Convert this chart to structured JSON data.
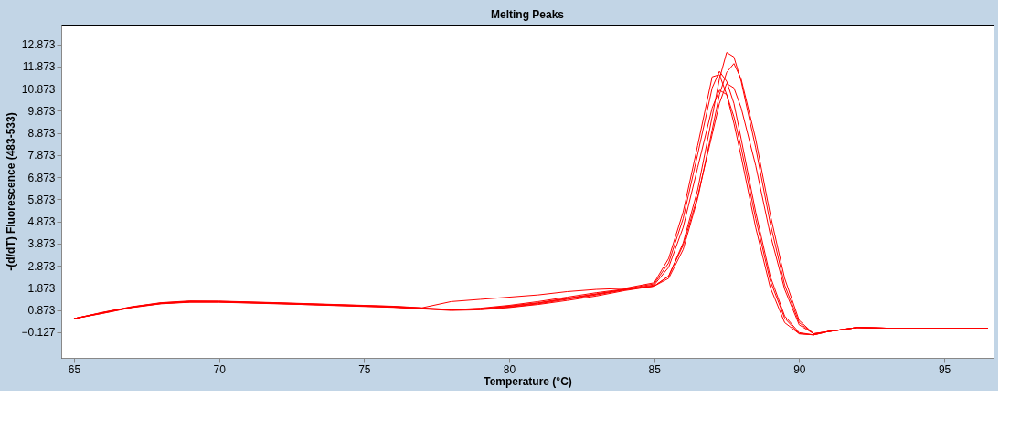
{
  "chart_data": {
    "type": "line",
    "title": "Melting Peaks",
    "xlabel": "Temperature (°C)",
    "ylabel": "-(d/dT) Fluorescence (483-533)",
    "x": [
      65,
      66,
      67,
      68,
      69,
      70,
      72,
      74,
      76,
      77,
      78,
      79,
      80,
      81,
      82,
      83,
      84,
      85,
      85.5,
      86,
      86.5,
      87,
      87.25,
      87.5,
      87.75,
      88,
      88.5,
      89,
      89.5,
      90,
      90.5,
      91,
      92,
      93,
      94,
      95,
      96.5
    ],
    "series": [
      {
        "color": "#ff0000",
        "values": [
          0.48,
          0.75,
          1.0,
          1.18,
          1.25,
          1.25,
          1.18,
          1.1,
          1.02,
          0.95,
          0.9,
          0.92,
          1.05,
          1.2,
          1.4,
          1.6,
          1.8,
          1.95,
          2.4,
          3.9,
          6.3,
          9.6,
          11.3,
          12.5,
          12.3,
          11.2,
          8.2,
          4.8,
          2.0,
          0.3,
          -0.2,
          -0.1,
          0.08,
          0.05,
          0.05,
          0.05,
          0.05
        ]
      },
      {
        "color": "#ff0000",
        "values": [
          0.48,
          0.72,
          0.98,
          1.15,
          1.22,
          1.22,
          1.15,
          1.08,
          1.0,
          0.93,
          0.87,
          0.9,
          1.0,
          1.15,
          1.35,
          1.55,
          1.78,
          1.95,
          2.3,
          3.6,
          5.9,
          9.0,
          10.6,
          11.6,
          12.0,
          11.3,
          8.6,
          5.2,
          2.3,
          0.4,
          -0.2,
          -0.1,
          0.08,
          0.05,
          0.05,
          0.05,
          0.05
        ]
      },
      {
        "color": "#ff0000",
        "values": [
          0.48,
          0.77,
          1.02,
          1.2,
          1.28,
          1.27,
          1.2,
          1.12,
          1.04,
          0.97,
          1.25,
          1.35,
          1.45,
          1.55,
          1.7,
          1.8,
          1.85,
          2.1,
          3.2,
          5.3,
          8.3,
          11.4,
          11.5,
          10.6,
          9.3,
          7.8,
          4.6,
          1.9,
          0.3,
          -0.2,
          -0.25,
          -0.1,
          0.08,
          0.05,
          0.05,
          0.05,
          0.05
        ]
      },
      {
        "color": "#ff0000",
        "values": [
          0.48,
          0.74,
          1.0,
          1.17,
          1.24,
          1.24,
          1.17,
          1.09,
          1.01,
          0.94,
          0.88,
          0.95,
          1.08,
          1.25,
          1.45,
          1.65,
          1.82,
          2.05,
          3.0,
          5.0,
          7.9,
          10.9,
          11.65,
          11.2,
          10.2,
          8.6,
          5.3,
          2.4,
          0.6,
          -0.15,
          -0.25,
          -0.1,
          0.08,
          0.05,
          0.05,
          0.05,
          0.05
        ]
      },
      {
        "color": "#ff0000",
        "values": [
          0.48,
          0.73,
          0.99,
          1.16,
          1.23,
          1.23,
          1.16,
          1.07,
          0.99,
          0.92,
          0.85,
          0.88,
          0.98,
          1.12,
          1.3,
          1.5,
          1.75,
          1.95,
          2.4,
          3.8,
          6.0,
          8.8,
          10.2,
          11.1,
          10.9,
          10.0,
          7.4,
          4.3,
          1.8,
          0.2,
          -0.2,
          -0.1,
          0.08,
          0.05,
          0.05,
          0.05,
          0.05
        ]
      },
      {
        "color": "#ff0000",
        "values": [
          0.48,
          0.76,
          1.01,
          1.19,
          1.26,
          1.26,
          1.19,
          1.11,
          1.03,
          0.96,
          0.89,
          0.93,
          1.03,
          1.18,
          1.38,
          1.58,
          1.8,
          2.0,
          2.8,
          4.6,
          7.3,
          10.0,
          10.8,
          10.6,
          9.6,
          8.2,
          5.0,
          2.2,
          0.5,
          -0.2,
          -0.25,
          -0.1,
          0.08,
          0.05,
          0.05,
          0.05,
          0.05
        ]
      }
    ],
    "xlim": [
      64.56,
      96.7
    ],
    "ylim": [
      -1.29,
      13.76
    ],
    "xticks": [
      65,
      70,
      75,
      80,
      85,
      90,
      95
    ],
    "yticks": [
      -0.127,
      0.873,
      1.873,
      2.873,
      3.873,
      4.873,
      5.873,
      6.873,
      7.873,
      8.873,
      9.873,
      10.873,
      11.873,
      12.873
    ],
    "grid": false,
    "legend": false,
    "marker": "none",
    "line_style": "solid"
  }
}
